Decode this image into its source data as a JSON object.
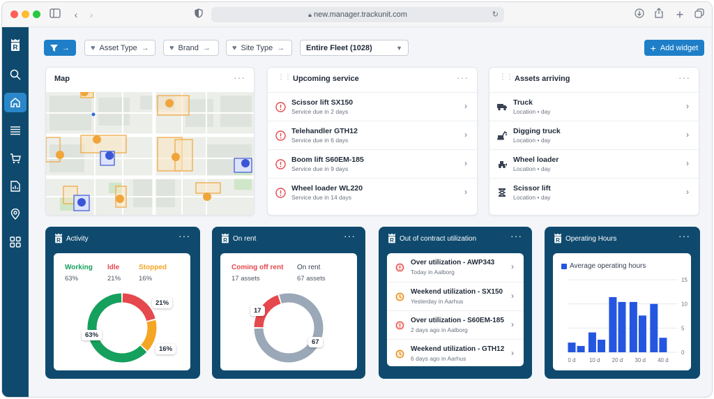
{
  "browser": {
    "url": "new.manager.trackunit.com"
  },
  "toolbar": {
    "filters": [
      {
        "label": "Asset Type"
      },
      {
        "label": "Brand"
      },
      {
        "label": "Site Type"
      }
    ],
    "fleet_select": "Entire Fleet (1028)",
    "add_widget": "Add widget"
  },
  "map": {
    "title": "Map"
  },
  "upcoming_service": {
    "title": "Upcoming service",
    "items": [
      {
        "name": "Scissor lift SX150",
        "sub": "Service due in 2 days"
      },
      {
        "name": "Telehandler GTH12",
        "sub": "Service due in 6 days"
      },
      {
        "name": "Boom lift S60EM-185",
        "sub": "Service due in 9 days"
      },
      {
        "name": "Wheel loader WL220",
        "sub": "Service due in 14 days"
      }
    ]
  },
  "assets_arriving": {
    "title": "Assets arriving",
    "items": [
      {
        "name": "Truck",
        "sub": "Location • day",
        "icon": "truck-icon"
      },
      {
        "name": "Digging truck",
        "sub": "Location • day",
        "icon": "excavator-icon"
      },
      {
        "name": "Wheel loader",
        "sub": "Location • day",
        "icon": "wheel-loader-icon"
      },
      {
        "name": "Scissor lift",
        "sub": "Location • day",
        "icon": "scissor-lift-icon"
      }
    ]
  },
  "activity": {
    "title": "Activity",
    "legend": [
      {
        "label": "Working",
        "value": "63%",
        "color": "#16a05d"
      },
      {
        "label": "Idle",
        "value": "21%",
        "color": "#e5484d"
      },
      {
        "label": "Stopped",
        "value": "16%",
        "color": "#f5a524"
      }
    ],
    "slices": [
      63,
      21,
      16
    ],
    "labels": [
      "63%",
      "21%",
      "16%"
    ]
  },
  "on_rent": {
    "title": "On rent",
    "legend": [
      {
        "label": "Coming off rent",
        "value": "17 assets",
        "color": "#e5484d"
      },
      {
        "label": "On rent",
        "value": "67 assets",
        "color": "#9aa8b8"
      }
    ],
    "slices": [
      17,
      67
    ],
    "labels": [
      "17",
      "67"
    ]
  },
  "utilization": {
    "title": "Out of contract utilization",
    "items": [
      {
        "name": "Over utilization - AWP343",
        "sub": "Today in Aalborg",
        "kind": "alert"
      },
      {
        "name": "Weekend utilization - SX150",
        "sub": "Yesterday in Aarhus",
        "kind": "clock"
      },
      {
        "name": "Over utilization - S60EM-185",
        "sub": "2 days ago in Aalborg",
        "kind": "alert"
      },
      {
        "name": "Weekend utilization - GTH12",
        "sub": "6 days ago in Aarhus",
        "kind": "clock"
      }
    ]
  },
  "operating_hours": {
    "title": "Operating Hours",
    "legend": "Average operating hours"
  },
  "chart_data": {
    "type": "bar",
    "series": [
      {
        "name": "Average operating hours",
        "values": [
          2,
          1.3,
          4.1,
          2.6,
          11.4,
          10.4,
          10.4,
          7.6,
          10,
          3
        ]
      }
    ],
    "x": [
      0,
      4,
      9,
      13,
      18,
      22,
      27,
      31,
      36,
      40
    ],
    "xticks": [
      "0 d",
      "10 d",
      "20 d",
      "30 d",
      "40 d"
    ],
    "yticks": [
      "0",
      "5",
      "10",
      "15"
    ],
    "ylim": [
      0,
      15
    ],
    "color": "#2456e0"
  }
}
